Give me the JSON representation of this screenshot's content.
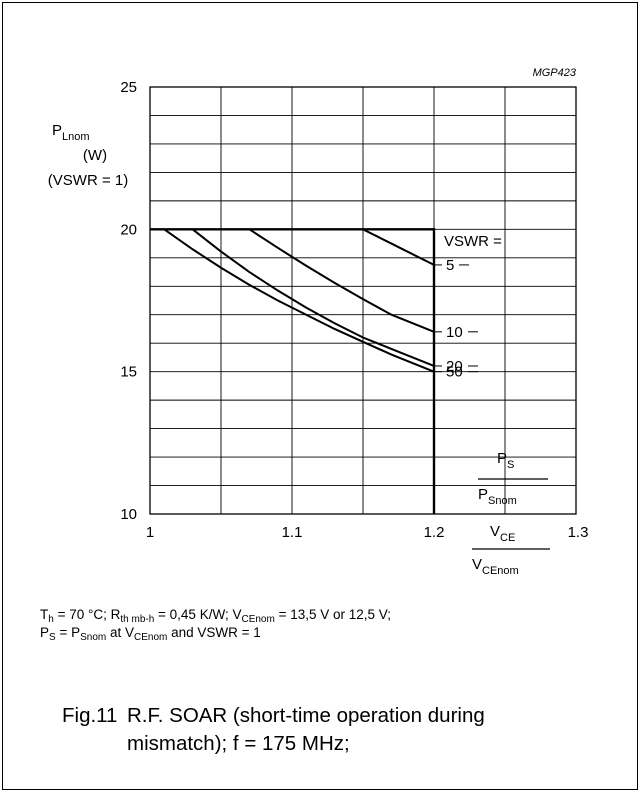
{
  "chart_data": {
    "type": "line",
    "figure_id": "MGP423",
    "xlim": [
      1,
      1.3
    ],
    "ylim": [
      10,
      25
    ],
    "x_ticks": [
      "1",
      "1.1",
      "1.2",
      "1.3"
    ],
    "y_ticks": [
      "10",
      "15",
      "20",
      "25"
    ],
    "grid": true,
    "y_axis_label": {
      "line1_base": "P",
      "line1_sub": "Lnom",
      "line2": "(W)",
      "line3": "(VSWR = 1)"
    },
    "x_axis_label_1": {
      "num_base": "P",
      "num_sub": "S",
      "den_base": "P",
      "den_sub": "Snom"
    },
    "x_axis_label_2": {
      "num_base": "V",
      "num_sub": "CE",
      "den_base": "V",
      "den_sub": "CEnom"
    },
    "legend_title": "VSWR =",
    "boundary": {
      "x": [
        1,
        1.2,
        1.2
      ],
      "y": [
        20,
        20,
        10
      ]
    },
    "series": [
      {
        "name": "5",
        "x": [
          1.15,
          1.16,
          1.17,
          1.18,
          1.19,
          1.2
        ],
        "y": [
          20,
          19.75,
          19.5,
          19.25,
          19.0,
          18.75
        ]
      },
      {
        "name": "10",
        "x": [
          1.07,
          1.09,
          1.11,
          1.13,
          1.15,
          1.17,
          1.2
        ],
        "y": [
          20,
          19.35,
          18.72,
          18.12,
          17.55,
          17.0,
          16.4
        ]
      },
      {
        "name": "20",
        "x": [
          1.03,
          1.05,
          1.07,
          1.09,
          1.11,
          1.13,
          1.15,
          1.17,
          1.2
        ],
        "y": [
          20,
          19.22,
          18.5,
          17.85,
          17.25,
          16.7,
          16.2,
          15.8,
          15.2
        ]
      },
      {
        "name": "50",
        "x": [
          1.01,
          1.03,
          1.05,
          1.07,
          1.09,
          1.11,
          1.13,
          1.15,
          1.17,
          1.2
        ],
        "y": [
          20,
          19.3,
          18.65,
          18.05,
          17.5,
          17.0,
          16.5,
          16.05,
          15.6,
          15.0
        ]
      }
    ]
  },
  "conditions": {
    "line1": {
      "t_base": "T",
      "t_sub": "h",
      "t_val": " = 70 °C; ",
      "r_base": "R",
      "r_sub": "th mb-h",
      "r_val": " = 0,45 K/W; ",
      "v_base": "V",
      "v_sub": "CEnom",
      "v_val": " = 13,5 V or 12,5 V;"
    },
    "line2": {
      "p_base": "P",
      "p_sub": "S",
      "eq": " = ",
      "p2_base": "P",
      "p2_sub": "Snom",
      "at": " at ",
      "v_base": "V",
      "v_sub": "CEnom",
      "tail": " and VSWR = 1"
    }
  },
  "caption": {
    "number": "Fig.11",
    "line1": "R.F. SOAR (short-time operation during",
    "line2": "mismatch); f = 175 MHz;"
  }
}
